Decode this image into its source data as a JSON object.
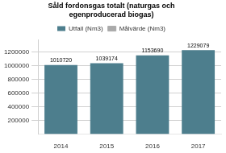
{
  "chart_data": {
    "type": "bar",
    "title": "Såld fordonsgas totalt (naturgas och\negenproducerad biogas)",
    "categories": [
      "2014",
      "2015",
      "2016",
      "2017"
    ],
    "series": [
      {
        "name": "Utfall (Nm3)",
        "color": "#4d7e8d",
        "values": [
          1010720,
          1039174,
          1153690,
          1229079
        ]
      },
      {
        "name": "Målvärde\n(Nm3)",
        "type": "line",
        "color": "#aaaaaa",
        "values": [
          null,
          null,
          null,
          null
        ]
      }
    ],
    "ylim": [
      0,
      1380000
    ],
    "yticks": [
      200000,
      400000,
      600000,
      800000,
      1000000,
      1200000
    ],
    "grid": true,
    "legend": "top",
    "data_labels": true
  }
}
